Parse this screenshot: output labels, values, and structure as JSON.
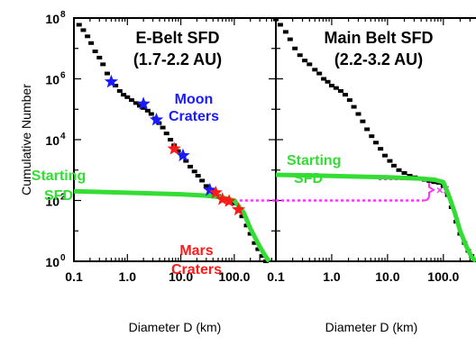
{
  "chart_data": [
    {
      "type": "scatter",
      "title": "E-Belt SFD",
      "subtitle": "(1.7-2.2 AU)",
      "xlabel": "Diameter D (km)",
      "ylabel": "Cumulative Number",
      "x_scale": "log",
      "y_scale": "log",
      "xlim": [
        0.1,
        600
      ],
      "ylim": [
        1,
        100000000
      ],
      "x_ticks": [
        {
          "value": 0.1,
          "label": "0.1"
        },
        {
          "value": 1,
          "label": "1.0"
        },
        {
          "value": 10,
          "label": "10.0"
        },
        {
          "value": 100,
          "label": "100.0"
        }
      ],
      "y_ticks": [
        {
          "value": 1,
          "label": "10",
          "exp": "0"
        },
        {
          "value": 100,
          "label": "10",
          "exp": "2"
        },
        {
          "value": 10000,
          "label": "10",
          "exp": "4"
        },
        {
          "value": 1000000,
          "label": "10",
          "exp": "6"
        },
        {
          "value": 100000000,
          "label": "10",
          "exp": "8"
        }
      ],
      "series": [
        {
          "name": "E-Belt SFD",
          "color": "#000000",
          "style": "dashes",
          "points": [
            [
              0.125,
              60000000
            ],
            [
              0.15,
              40000000
            ],
            [
              0.18,
              25000000
            ],
            [
              0.21,
              15000000
            ],
            [
              0.25,
              8000000
            ],
            [
              0.3,
              5000000
            ],
            [
              0.35,
              3000000
            ],
            [
              0.42,
              1500000
            ],
            [
              0.5,
              800000
            ],
            [
              0.6,
              600000
            ],
            [
              0.72,
              400000
            ],
            [
              0.85,
              300000
            ],
            [
              1.0,
              250000
            ],
            [
              1.2,
              200000
            ],
            [
              1.45,
              160000
            ],
            [
              1.7,
              130000
            ],
            [
              2.0,
              110000
            ],
            [
              2.4,
              90000
            ],
            [
              2.8,
              70000
            ],
            [
              3.3,
              50000
            ],
            [
              3.9,
              35000
            ],
            [
              4.6,
              25000
            ],
            [
              5.4,
              16000
            ],
            [
              6.4,
              10000
            ],
            [
              7.5,
              6500
            ],
            [
              8.9,
              4200
            ],
            [
              10.5,
              3000
            ],
            [
              12.5,
              2000
            ],
            [
              15,
              1300
            ],
            [
              18,
              900
            ],
            [
              21,
              650
            ],
            [
              25,
              450
            ],
            [
              30,
              300
            ],
            [
              35,
              220
            ],
            [
              42,
              170
            ],
            [
              50,
              140
            ],
            [
              60,
              120
            ],
            [
              72,
              105
            ],
            [
              85,
              95
            ],
            [
              100,
              80
            ],
            [
              120,
              50
            ],
            [
              140,
              30
            ],
            [
              170,
              15
            ],
            [
              200,
              8
            ],
            [
              240,
              4
            ],
            [
              280,
              2.5
            ],
            [
              330,
              1.5
            ],
            [
              390,
              1
            ]
          ]
        },
        {
          "name": "Starting SFD",
          "color": "#33dd33",
          "style": "thick-line",
          "points": [
            [
              0.1,
              200
            ],
            [
              1,
              180
            ],
            [
              10,
              160
            ],
            [
              30,
              145
            ],
            [
              60,
              125
            ],
            [
              100,
              100
            ],
            [
              150,
              40
            ],
            [
              200,
              12
            ],
            [
              300,
              3
            ],
            [
              400,
              1.3
            ],
            [
              450,
              1
            ]
          ]
        },
        {
          "name": "Moon Craters",
          "color": "#1a1aff",
          "style": "stars",
          "points": [
            [
              0.5,
              800000
            ],
            [
              2.0,
              150000
            ],
            [
              3.5,
              45000
            ],
            [
              11,
              3000
            ],
            [
              35,
              220
            ]
          ]
        },
        {
          "name": "Mars Craters",
          "color": "#ff1a1a",
          "style": "stars",
          "points": [
            [
              7.5,
              5000
            ],
            [
              45,
              180
            ],
            [
              60,
              110
            ],
            [
              80,
              95
            ],
            [
              120,
              50
            ]
          ]
        }
      ],
      "annotations": [
        {
          "text": "Moon",
          "color": "#1a1aff"
        },
        {
          "text": "Craters",
          "color": "#1a1aff"
        },
        {
          "text": "Starting",
          "color": "#33dd33"
        },
        {
          "text": "SFD",
          "color": "#33dd33"
        },
        {
          "text": "Mars",
          "color": "#ff1a1a"
        },
        {
          "text": "Craters",
          "color": "#ff1a1a"
        }
      ],
      "reference_line": {
        "y": 100,
        "color": "#ff33ff",
        "style": "dotted"
      }
    },
    {
      "type": "scatter",
      "title": "Main Belt SFD",
      "subtitle": "(2.2-3.2 AU)",
      "xlabel": "Diameter D (km)",
      "ylabel": "",
      "x_scale": "log",
      "y_scale": "log",
      "xlim": [
        0.1,
        600
      ],
      "ylim": [
        1,
        100000000
      ],
      "x_ticks": [
        {
          "value": 0.1,
          "label": "0.1"
        },
        {
          "value": 1,
          "label": "1.0"
        },
        {
          "value": 10,
          "label": "10.0"
        },
        {
          "value": 100,
          "label": "100.0"
        }
      ],
      "series": [
        {
          "name": "Main Belt SFD",
          "color": "#000000",
          "style": "dashes",
          "points": [
            [
              0.1,
              90000000
            ],
            [
              0.12,
              60000000
            ],
            [
              0.15,
              35000000
            ],
            [
              0.18,
              20000000
            ],
            [
              0.22,
              10000000
            ],
            [
              0.27,
              6000000
            ],
            [
              0.33,
              4000000
            ],
            [
              0.4,
              3000000
            ],
            [
              0.5,
              2000000
            ],
            [
              0.6,
              1500000
            ],
            [
              0.72,
              1000000
            ],
            [
              0.85,
              800000
            ],
            [
              1.0,
              600000
            ],
            [
              1.2,
              500000
            ],
            [
              1.45,
              400000
            ],
            [
              1.75,
              300000
            ],
            [
              2.1,
              200000
            ],
            [
              2.5,
              120000
            ],
            [
              3.0,
              70000
            ],
            [
              3.6,
              40000
            ],
            [
              4.3,
              22000
            ],
            [
              5.2,
              13000
            ],
            [
              6.2,
              8000
            ],
            [
              7.5,
              5000
            ],
            [
              9,
              3000
            ],
            [
              11,
              2000
            ],
            [
              13,
              1400
            ],
            [
              16,
              1000
            ],
            [
              20,
              800
            ],
            [
              25,
              650
            ],
            [
              31,
              580
            ],
            [
              38,
              520
            ],
            [
              46,
              480
            ],
            [
              56,
              440
            ],
            [
              68,
              400
            ],
            [
              83,
              380
            ],
            [
              100,
              300
            ],
            [
              120,
              150
            ],
            [
              140,
              60
            ],
            [
              170,
              20
            ],
            [
              200,
              8
            ],
            [
              240,
              4
            ],
            [
              280,
              2.2
            ],
            [
              320,
              1.5
            ],
            [
              370,
              1.1
            ]
          ]
        },
        {
          "name": "Starting SFD",
          "color": "#33dd33",
          "style": "thick-line",
          "points": [
            [
              0.1,
              700
            ],
            [
              1,
              640
            ],
            [
              10,
              580
            ],
            [
              40,
              520
            ],
            [
              70,
              480
            ],
            [
              100,
              400
            ],
            [
              130,
              120
            ],
            [
              160,
              40
            ],
            [
              200,
              10
            ],
            [
              260,
              3
            ],
            [
              320,
              1.4
            ],
            [
              380,
              1
            ]
          ]
        }
      ],
      "annotations": [
        {
          "text": "Starting",
          "color": "#33dd33"
        },
        {
          "text": "SFD",
          "color": "#33dd33"
        }
      ],
      "reference_line": {
        "y": 100,
        "color": "#ff33ff",
        "style": "dotted"
      },
      "bracket": {
        "from": 100,
        "to": 500,
        "label": "×5",
        "color": "#ff33ff"
      }
    }
  ]
}
